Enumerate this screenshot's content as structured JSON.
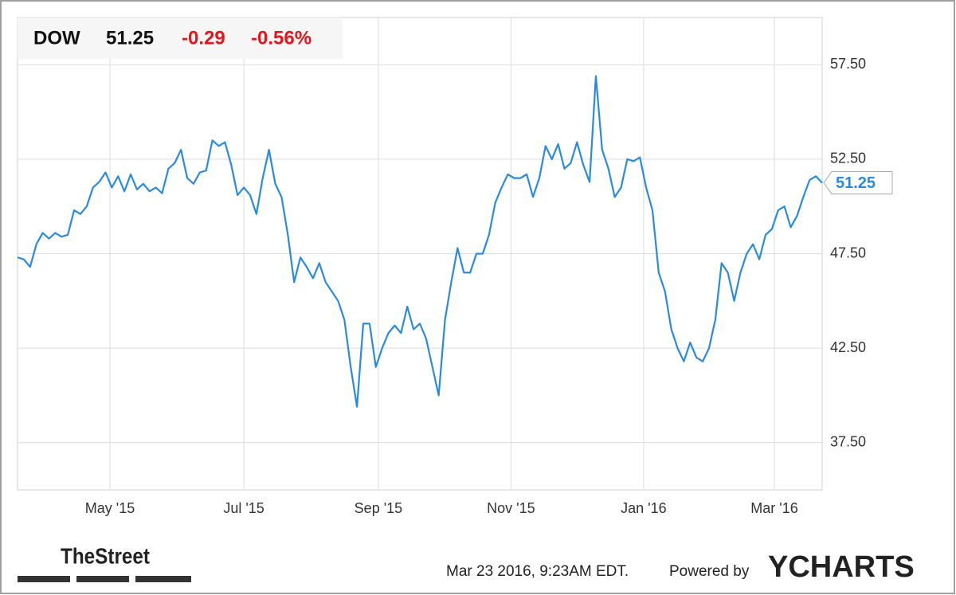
{
  "chart_data": {
    "type": "line",
    "title": "DOW",
    "price": 51.25,
    "change": "-0.29",
    "change_pct": "-0.56%",
    "values": [
      47.3,
      47.2,
      46.8,
      48.0,
      48.6,
      48.3,
      48.6,
      48.4,
      48.5,
      49.8,
      49.6,
      50.0,
      51.0,
      51.3,
      51.8,
      51.0,
      51.6,
      50.8,
      51.7,
      50.9,
      51.2,
      50.8,
      51.0,
      50.7,
      52.0,
      52.3,
      53.0,
      51.5,
      51.2,
      51.8,
      51.9,
      53.5,
      53.2,
      53.4,
      52.2,
      50.6,
      51.0,
      50.6,
      49.6,
      51.5,
      53.0,
      51.2,
      50.5,
      48.5,
      46.0,
      47.3,
      46.8,
      46.2,
      47.0,
      46.0,
      45.5,
      45.0,
      44.0,
      41.5,
      39.4,
      43.8,
      43.8,
      41.5,
      42.5,
      43.3,
      43.7,
      43.3,
      44.7,
      43.5,
      43.8,
      43.0,
      41.5,
      40.0,
      44.0,
      46.0,
      47.8,
      46.5,
      46.5,
      47.5,
      47.5,
      48.5,
      50.2,
      51.0,
      51.7,
      51.5,
      51.5,
      51.7,
      50.5,
      51.5,
      53.2,
      52.5,
      53.3,
      52.0,
      52.3,
      53.4,
      52.2,
      51.3,
      56.9,
      53.0,
      52.0,
      50.5,
      51.0,
      52.5,
      52.4,
      52.6,
      51.0,
      49.8,
      46.5,
      45.5,
      43.5,
      42.5,
      41.8,
      42.8,
      42.0,
      41.8,
      42.5,
      44.0,
      47.0,
      46.5,
      45.0,
      46.5,
      47.5,
      48.0,
      47.2,
      48.5,
      48.8,
      49.8,
      50.0,
      48.9,
      49.5,
      50.5,
      51.4,
      51.6,
      51.25
    ],
    "color": "#2a8ae0",
    "xlim": [
      0,
      128
    ],
    "xticks": [
      {
        "value": 14.7,
        "label": "May '15"
      },
      {
        "value": 36.0,
        "label": "Jul '15"
      },
      {
        "value": 57.4,
        "label": "Sep '15"
      },
      {
        "value": 78.5,
        "label": "Nov '15"
      },
      {
        "value": 99.6,
        "label": "Jan '16"
      },
      {
        "value": 120.4,
        "label": "Mar '16"
      }
    ],
    "ylim": [
      35,
      60
    ],
    "yticks": [
      {
        "value": 37.5,
        "label": "37.50"
      },
      {
        "value": 42.5,
        "label": "42.50"
      },
      {
        "value": 47.5,
        "label": "47.50"
      },
      {
        "value": 52.5,
        "label": "52.50"
      },
      {
        "value": 57.5,
        "label": "57.50"
      }
    ],
    "grid": true,
    "source": "TheStreet",
    "timestamp": "Mar 23 2016, 9:23AM EDT.",
    "powered_by": "Powered by",
    "brand": "YCHARTS"
  }
}
